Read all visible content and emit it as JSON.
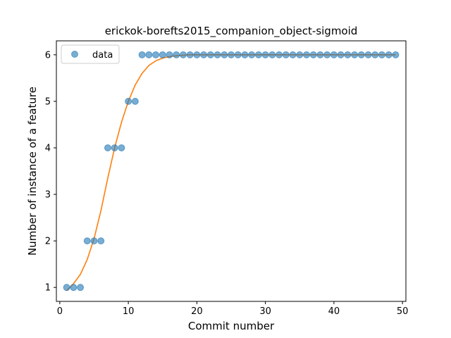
{
  "chart_data": {
    "type": "scatter",
    "title": "erickok-borefts2015_companion_object-sigmoid",
    "xlabel": "Commit number",
    "ylabel": "Number of instance of a feature",
    "xlim": [
      -0.5,
      50.5
    ],
    "ylim": [
      0.7,
      6.3
    ],
    "xticks": [
      0,
      10,
      20,
      30,
      40,
      50
    ],
    "yticks": [
      1,
      2,
      3,
      4,
      5,
      6
    ],
    "grid": false,
    "legend": {
      "placement": "top-left",
      "entries": [
        "data"
      ]
    },
    "colors": {
      "data": "#1f77b4",
      "fit": "#ff7f0e"
    },
    "series": [
      {
        "name": "data",
        "kind": "scatter",
        "x": [
          1,
          2,
          3,
          4,
          5,
          6,
          7,
          8,
          9,
          10,
          11,
          12,
          13,
          14,
          15,
          16,
          17,
          18,
          19,
          20,
          21,
          22,
          23,
          24,
          25,
          26,
          27,
          28,
          29,
          30,
          31,
          32,
          33,
          34,
          35,
          36,
          37,
          38,
          39,
          40,
          41,
          42,
          43,
          44,
          45,
          46,
          47,
          48,
          49
        ],
        "y": [
          1,
          1,
          1,
          2,
          2,
          2,
          4,
          4,
          4,
          5,
          5,
          6,
          6,
          6,
          6,
          6,
          6,
          6,
          6,
          6,
          6,
          6,
          6,
          6,
          6,
          6,
          6,
          6,
          6,
          6,
          6,
          6,
          6,
          6,
          6,
          6,
          6,
          6,
          6,
          6,
          6,
          6,
          6,
          6,
          6,
          6,
          6,
          6,
          6
        ]
      },
      {
        "kind": "line",
        "x": [
          1,
          2,
          3,
          4,
          5,
          6,
          7,
          8,
          9,
          10,
          11,
          12,
          13,
          14,
          15,
          16,
          17,
          18,
          19,
          20,
          22,
          25,
          30,
          35,
          40,
          45,
          49
        ],
        "y": [
          0.93,
          1.08,
          1.28,
          1.6,
          2.05,
          2.65,
          3.35,
          4.0,
          4.55,
          5.0,
          5.35,
          5.6,
          5.77,
          5.87,
          5.93,
          5.96,
          5.98,
          5.99,
          6.0,
          6.0,
          6.0,
          6.0,
          6.0,
          6.0,
          6.0,
          6.0,
          6.0
        ]
      }
    ]
  }
}
